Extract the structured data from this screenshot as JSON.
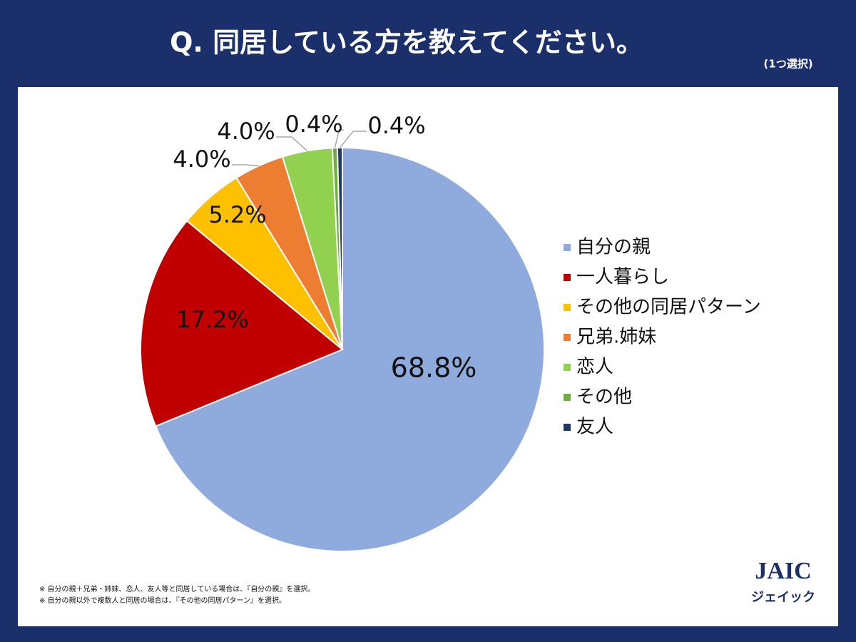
{
  "chart_data": {
    "type": "pie",
    "title": "Q. 同居している方を教えてください。",
    "subtitle": "(1つ選択)",
    "categories": [
      "自分の親",
      "一人暮らし",
      "その他の同居パターン",
      "兄弟.姉妹",
      "恋人",
      "その他",
      "友人"
    ],
    "values": [
      68.8,
      17.2,
      5.2,
      4.0,
      4.0,
      0.4,
      0.4
    ],
    "value_labels": [
      "68.8%",
      "17.2%",
      "5.2%",
      "4.0%",
      "4.0%",
      "0.4%",
      "0.4%"
    ],
    "colors": [
      "#8faadc",
      "#c00000",
      "#ffc000",
      "#ed7d31",
      "#92d050",
      "#70ad47",
      "#203864"
    ],
    "legend": "right",
    "notes": [
      "※ 自分の親＋兄弟・姉妹、恋人、友人等と同居している場合は、『自分の親』を選択。",
      "※ 自分の親以外で複数人と同居の場合は、『その他の同居パターン』を選択。"
    ]
  },
  "logo": {
    "text": "JAIC",
    "subtext": "ジェイック"
  }
}
